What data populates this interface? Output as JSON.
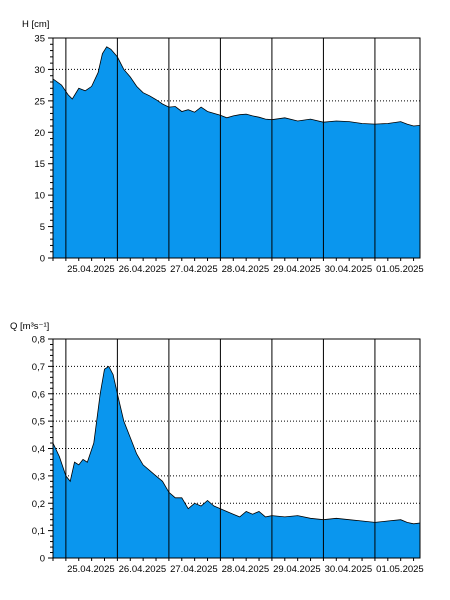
{
  "colors": {
    "fill": "#0a96ee",
    "line": "#000000",
    "grid": "#000000"
  },
  "chart_data": [
    {
      "type": "area",
      "ylabel": "H [cm]",
      "ylim": [
        0,
        35
      ],
      "yticks": [
        0,
        5,
        10,
        15,
        20,
        25,
        30,
        35
      ],
      "ytick_labels": [
        "0",
        "5",
        "10",
        "15",
        "20",
        "25",
        "30",
        "35"
      ],
      "xlim": [
        "2025-04-24T18:00",
        "2025-05-01T21:00"
      ],
      "xticks": [
        "2025-04-25",
        "2025-04-26",
        "2025-04-27",
        "2025-04-28",
        "2025-04-29",
        "2025-04-30",
        "2025-05-01"
      ],
      "xtick_labels": [
        "25.04.2025",
        "26.04.2025",
        "27.04.2025",
        "28.04.2025",
        "29.04.2025",
        "30.04.2025",
        "01.05.2025"
      ],
      "grid": true,
      "series": [
        {
          "x": [
            "2025-04-24T18:00",
            "2025-04-24T22:00",
            "2025-04-25T01:00",
            "2025-04-25T03:00",
            "2025-04-25T06:00",
            "2025-04-25T09:00",
            "2025-04-25T12:00",
            "2025-04-25T15:00",
            "2025-04-25T17:00",
            "2025-04-25T19:00",
            "2025-04-25T21:00",
            "2025-04-26T00:00",
            "2025-04-26T03:00",
            "2025-04-26T06:00",
            "2025-04-26T09:00",
            "2025-04-26T12:00",
            "2025-04-26T15:00",
            "2025-04-26T18:00",
            "2025-04-26T21:00",
            "2025-04-27T00:00",
            "2025-04-27T03:00",
            "2025-04-27T06:00",
            "2025-04-27T09:00",
            "2025-04-27T12:00",
            "2025-04-27T15:00",
            "2025-04-27T18:00",
            "2025-04-27T21:00",
            "2025-04-28T00:00",
            "2025-04-28T03:00",
            "2025-04-28T06:00",
            "2025-04-28T09:00",
            "2025-04-28T12:00",
            "2025-04-28T15:00",
            "2025-04-28T18:00",
            "2025-04-28T21:00",
            "2025-04-29T00:00",
            "2025-04-29T06:00",
            "2025-04-29T12:00",
            "2025-04-29T18:00",
            "2025-04-30T00:00",
            "2025-04-30T06:00",
            "2025-04-30T12:00",
            "2025-04-30T18:00",
            "2025-05-01T00:00",
            "2025-05-01T06:00",
            "2025-05-01T12:00",
            "2025-05-01T15:00",
            "2025-05-01T18:00",
            "2025-05-01T21:00"
          ],
          "y": [
            28.5,
            27.5,
            26.0,
            25.3,
            27.0,
            26.6,
            27.3,
            29.5,
            32.5,
            33.6,
            33.2,
            32.0,
            30.0,
            28.8,
            27.3,
            26.3,
            25.8,
            25.2,
            24.5,
            24.0,
            24.1,
            23.3,
            23.6,
            23.2,
            24.0,
            23.3,
            23.0,
            22.7,
            22.3,
            22.6,
            22.8,
            22.9,
            22.6,
            22.4,
            22.1,
            22.0,
            22.3,
            21.8,
            22.1,
            21.6,
            21.8,
            21.7,
            21.4,
            21.3,
            21.4,
            21.7,
            21.3,
            21.0,
            21.1
          ]
        }
      ]
    },
    {
      "type": "area",
      "ylabel": "Q [m³s⁻¹]",
      "ylim": [
        0,
        0.8
      ],
      "yticks": [
        0,
        0.1,
        0.2,
        0.3,
        0.4,
        0.5,
        0.6,
        0.7,
        0.8
      ],
      "ytick_labels": [
        "0",
        "0,1",
        "0,2",
        "0,3",
        "0,4",
        "0,5",
        "0,6",
        "0,7",
        "0,8"
      ],
      "xlim": [
        "2025-04-24T18:00",
        "2025-05-01T21:00"
      ],
      "xticks": [
        "2025-04-25",
        "2025-04-26",
        "2025-04-27",
        "2025-04-28",
        "2025-04-29",
        "2025-04-30",
        "2025-05-01"
      ],
      "xtick_labels": [
        "25.04.2025",
        "26.04.2025",
        "27.04.2025",
        "28.04.2025",
        "29.04.2025",
        "30.04.2025",
        "01.05.2025"
      ],
      "grid": true,
      "series": [
        {
          "x": [
            "2025-04-24T18:00",
            "2025-04-24T21:00",
            "2025-04-25T00:00",
            "2025-04-25T02:00",
            "2025-04-25T04:00",
            "2025-04-25T06:00",
            "2025-04-25T08:00",
            "2025-04-25T10:00",
            "2025-04-25T13:00",
            "2025-04-25T16:00",
            "2025-04-25T18:00",
            "2025-04-25T20:00",
            "2025-04-25T22:00",
            "2025-04-26T00:00",
            "2025-04-26T03:00",
            "2025-04-26T06:00",
            "2025-04-26T09:00",
            "2025-04-26T12:00",
            "2025-04-26T15:00",
            "2025-04-26T18:00",
            "2025-04-26T21:00",
            "2025-04-27T00:00",
            "2025-04-27T03:00",
            "2025-04-27T06:00",
            "2025-04-27T09:00",
            "2025-04-27T12:00",
            "2025-04-27T15:00",
            "2025-04-27T18:00",
            "2025-04-27T21:00",
            "2025-04-28T00:00",
            "2025-04-28T03:00",
            "2025-04-28T06:00",
            "2025-04-28T09:00",
            "2025-04-28T12:00",
            "2025-04-28T15:00",
            "2025-04-28T18:00",
            "2025-04-28T21:00",
            "2025-04-29T00:00",
            "2025-04-29T06:00",
            "2025-04-29T12:00",
            "2025-04-29T18:00",
            "2025-04-30T00:00",
            "2025-04-30T06:00",
            "2025-04-30T12:00",
            "2025-04-30T18:00",
            "2025-05-01T00:00",
            "2025-05-01T06:00",
            "2025-05-01T12:00",
            "2025-05-01T15:00",
            "2025-05-01T18:00",
            "2025-05-01T21:00"
          ],
          "y": [
            0.42,
            0.37,
            0.3,
            0.28,
            0.35,
            0.34,
            0.36,
            0.35,
            0.42,
            0.6,
            0.69,
            0.7,
            0.67,
            0.6,
            0.5,
            0.44,
            0.38,
            0.34,
            0.32,
            0.3,
            0.28,
            0.24,
            0.22,
            0.22,
            0.18,
            0.2,
            0.19,
            0.21,
            0.19,
            0.18,
            0.17,
            0.16,
            0.15,
            0.17,
            0.16,
            0.17,
            0.15,
            0.155,
            0.15,
            0.155,
            0.145,
            0.14,
            0.145,
            0.14,
            0.135,
            0.13,
            0.135,
            0.14,
            0.13,
            0.125,
            0.128
          ]
        }
      ]
    }
  ]
}
